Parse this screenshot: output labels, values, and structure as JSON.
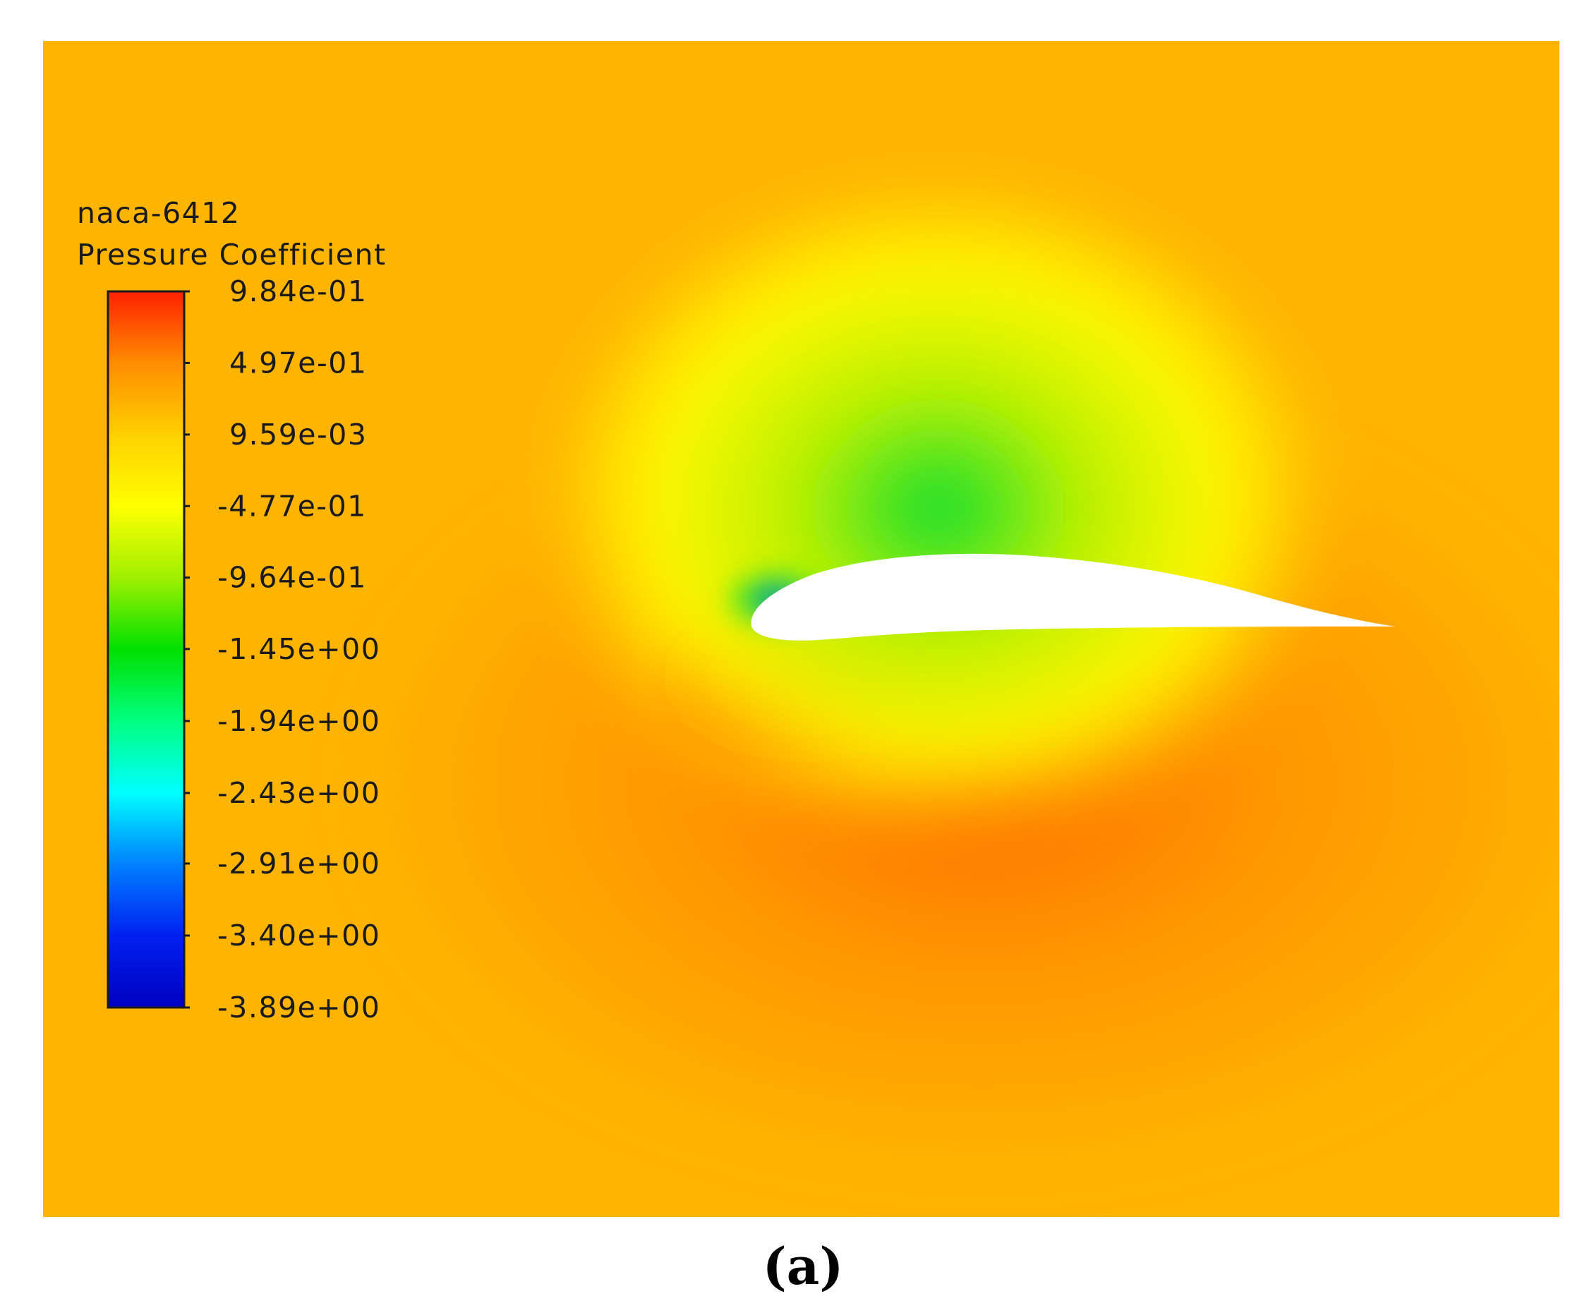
{
  "chart_data": {
    "type": "heatmap",
    "title": "naca-6412",
    "colorbar_label": "Pressure Coefficient",
    "colorbar_ticks": [
      "9.84e-01",
      "4.97e-01",
      "9.59e-03",
      "-4.77e-01",
      "-9.64e-01",
      "-1.45e+00",
      "-1.94e+00",
      "-2.43e+00",
      "-2.91e+00",
      "-3.40e+00",
      "-3.89e+00"
    ],
    "colorbar_range": [
      -3.89,
      0.984
    ],
    "colorbar_colors": [
      "#ff2000",
      "#ff8c00",
      "#ffd000",
      "#ffff00",
      "#a0f000",
      "#00e000",
      "#00ff80",
      "#00ffff",
      "#0080ff",
      "#0020f0",
      "#0000c0"
    ],
    "field_colors": {
      "freestream": "#ffb400",
      "suction_core": "#00dc32",
      "suction_mid": "#b4f000",
      "suction_edge": "#ffff00",
      "pressure_core": "#ff2000",
      "pressure_mid": "#ff6a00",
      "pressure_edge": "#ff9000",
      "leading_edge_min": "#0040ff",
      "airfoil_fill": "#ffffff"
    },
    "caption": "(a)"
  }
}
